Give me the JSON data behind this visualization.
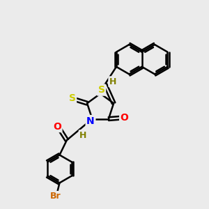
{
  "bg_color": "#ebebeb",
  "bond_color": "#000000",
  "bond_width": 1.8,
  "dbo": 0.08,
  "atom_colors": {
    "S": "#cccc00",
    "N": "#0000ff",
    "O": "#ff0000",
    "Br": "#cc6600",
    "H": "#808000",
    "C": "#000000"
  },
  "font_size": 9
}
